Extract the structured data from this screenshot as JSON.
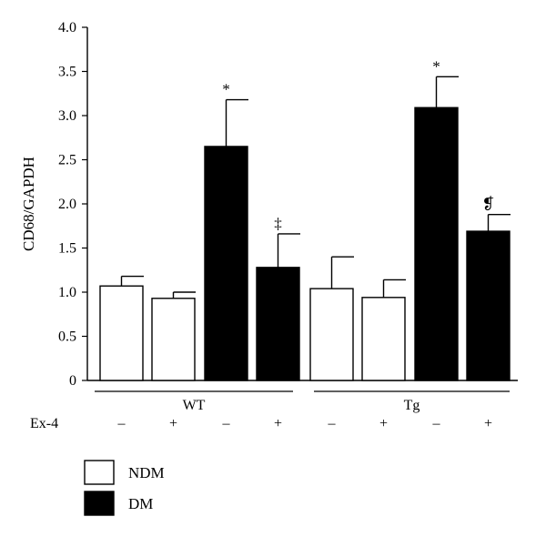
{
  "chart_data": {
    "type": "bar",
    "title": "",
    "xlabel": "",
    "ylabel": "CD68/GAPDH",
    "ylim": [
      0,
      4.0
    ],
    "yticks": [
      0,
      0.5,
      1.0,
      1.5,
      2.0,
      2.5,
      3.0,
      3.5,
      4.0
    ],
    "ytick_labels": [
      "0",
      "0.5",
      "1.0",
      "1.5",
      "2.0",
      "2.5",
      "3.0",
      "3.5",
      "4.0"
    ],
    "groups": [
      "WT",
      "Tg"
    ],
    "treatment_label": "Ex-4",
    "bars": [
      {
        "group": "WT",
        "series": "NDM",
        "ex4": "–",
        "value": 1.07,
        "error": 0.11,
        "annotation": ""
      },
      {
        "group": "WT",
        "series": "NDM",
        "ex4": "+",
        "value": 0.93,
        "error": 0.07,
        "annotation": ""
      },
      {
        "group": "WT",
        "series": "DM",
        "ex4": "–",
        "value": 2.65,
        "error": 0.53,
        "annotation": "*"
      },
      {
        "group": "WT",
        "series": "DM",
        "ex4": "+",
        "value": 1.28,
        "error": 0.38,
        "annotation": "‡"
      },
      {
        "group": "Tg",
        "series": "NDM",
        "ex4": "–",
        "value": 1.04,
        "error": 0.36,
        "annotation": ""
      },
      {
        "group": "Tg",
        "series": "NDM",
        "ex4": "+",
        "value": 0.94,
        "error": 0.2,
        "annotation": ""
      },
      {
        "group": "Tg",
        "series": "DM",
        "ex4": "–",
        "value": 3.09,
        "error": 0.35,
        "annotation": "*"
      },
      {
        "group": "Tg",
        "series": "DM",
        "ex4": "+",
        "value": 1.69,
        "error": 0.19,
        "annotation": "❡"
      }
    ],
    "legend": [
      {
        "name": "NDM",
        "color": "#ffffff"
      },
      {
        "name": "DM",
        "color": "#000000"
      }
    ],
    "legend_position": "bottom-left",
    "grid": false
  }
}
